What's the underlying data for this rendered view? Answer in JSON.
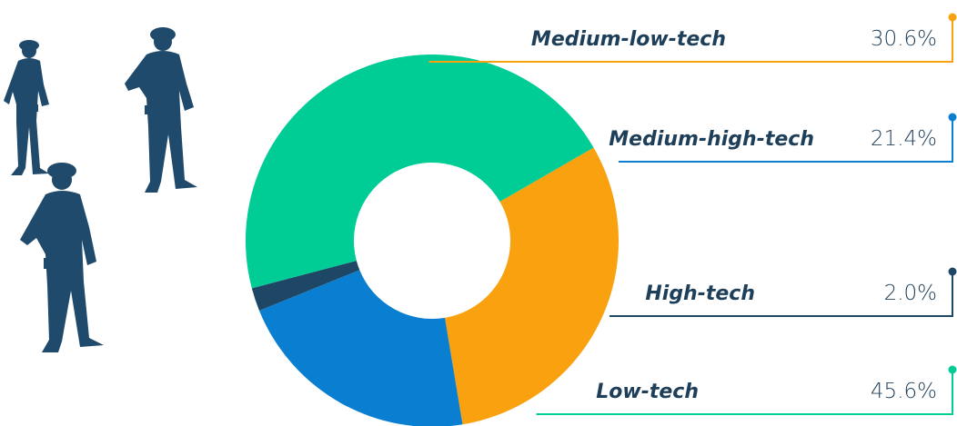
{
  "chart_data": {
    "type": "pie",
    "variant": "donut",
    "slices": [
      {
        "name": "Medium-low-tech",
        "value": 30.6,
        "label": "30.6%",
        "color": "#f9a10e"
      },
      {
        "name": "Medium-high-tech",
        "value": 21.4,
        "label": "21.4%",
        "color": "#0a7fd1"
      },
      {
        "name": "High-tech",
        "value": 2.0,
        "label": "2.0%",
        "color": "#1e4766"
      },
      {
        "name": "Low-tech",
        "value": 45.6,
        "label": "45.6%",
        "color": "#00cc96"
      }
    ]
  },
  "decor": {
    "figure_color": "#1f4a6b",
    "figures": [
      "worker-figure",
      "worker-figure",
      "worker-figure"
    ]
  }
}
